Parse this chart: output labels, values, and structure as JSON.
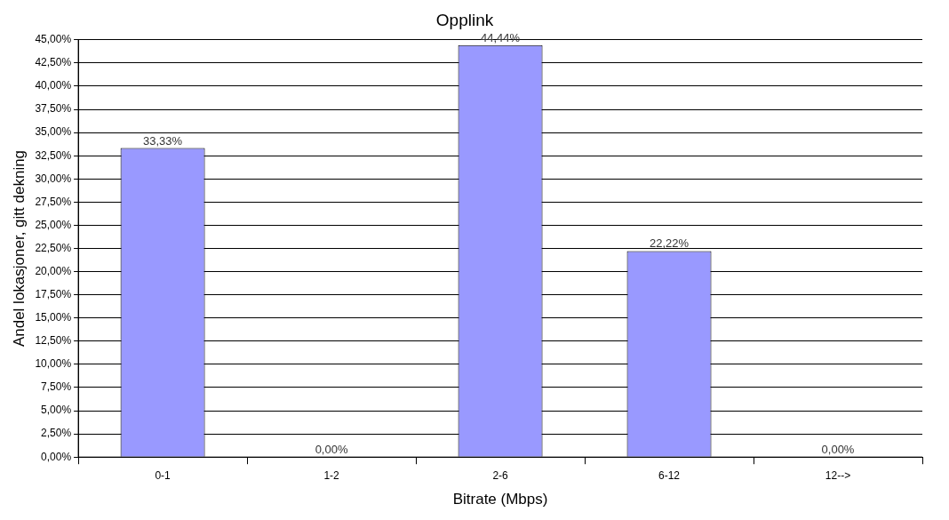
{
  "chart_data": {
    "type": "bar",
    "title": "Opplink",
    "xlabel": "Bitrate (Mbps)",
    "ylabel": "Andel lokasjoner, gitt dekning",
    "categories": [
      "0-1",
      "1-2",
      "2-6",
      "6-12",
      "12-->"
    ],
    "values": [
      33.33,
      0,
      44.44,
      22.22,
      0
    ],
    "color": "#9999ff",
    "value_labels": [
      "33,33%",
      "0,00%",
      "44,44%",
      "22,22%",
      "0,00%"
    ],
    "ylim": [
      0,
      45
    ],
    "yticks": [
      {
        "value": 0,
        "label": "0,00%"
      },
      {
        "value": 2.5,
        "label": "2,50%"
      },
      {
        "value": 5,
        "label": "5,00%"
      },
      {
        "value": 7.5,
        "label": "7,50%"
      },
      {
        "value": 10,
        "label": "10,00%"
      },
      {
        "value": 12.5,
        "label": "12,50%"
      },
      {
        "value": 15,
        "label": "15,00%"
      },
      {
        "value": 17.5,
        "label": "17,50%"
      },
      {
        "value": 20,
        "label": "20,00%"
      },
      {
        "value": 22.5,
        "label": "22,50%"
      },
      {
        "value": 25,
        "label": "25,00%"
      },
      {
        "value": 27.5,
        "label": "27,50%"
      },
      {
        "value": 30,
        "label": "30,00%"
      },
      {
        "value": 32.5,
        "label": "32,50%"
      },
      {
        "value": 35,
        "label": "35,00%"
      },
      {
        "value": 37.5,
        "label": "37,50%"
      },
      {
        "value": 40,
        "label": "40,00%"
      },
      {
        "value": 42.5,
        "label": "42,50%"
      },
      {
        "value": 45,
        "label": "45,00%"
      }
    ],
    "grid": "y"
  }
}
